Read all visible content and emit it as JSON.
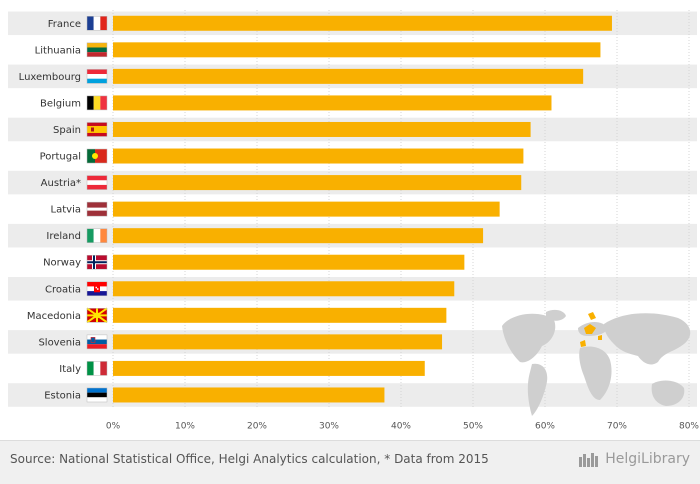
{
  "chart_data": {
    "type": "bar",
    "orientation": "horizontal",
    "categories": [
      "France",
      "Lithuania",
      "Luxembourg",
      "Belgium",
      "Spain",
      "Portugal",
      "Austria*",
      "Latvia",
      "Ireland",
      "Norway",
      "Croatia",
      "Macedonia",
      "Slovenia",
      "Italy",
      "Estonia"
    ],
    "flags": [
      "france-flag-icon",
      "lithuania-flag-icon",
      "luxembourg-flag-icon",
      "belgium-flag-icon",
      "spain-flag-icon",
      "portugal-flag-icon",
      "austria-flag-icon",
      "latvia-flag-icon",
      "ireland-flag-icon",
      "norway-flag-icon",
      "croatia-flag-icon",
      "macedonia-flag-icon",
      "slovenia-flag-icon",
      "italy-flag-icon",
      "estonia-flag-icon"
    ],
    "values": [
      69.3,
      67.7,
      65.3,
      60.9,
      58.0,
      57.0,
      56.7,
      53.7,
      51.4,
      48.8,
      47.4,
      46.3,
      45.7,
      43.3,
      37.7
    ],
    "xlim": [
      0,
      80
    ],
    "xticks": [
      "0%",
      "10%",
      "20%",
      "30%",
      "40%",
      "50%",
      "60%",
      "70%",
      "80%"
    ],
    "bar_color": "#f9b000",
    "xlabel": "",
    "ylabel": "",
    "grid": true
  },
  "footer": {
    "source": "Source: National Statistical Office, Helgi Analytics calculation, * Data from 2015",
    "brand": "HelgiLibrary"
  }
}
